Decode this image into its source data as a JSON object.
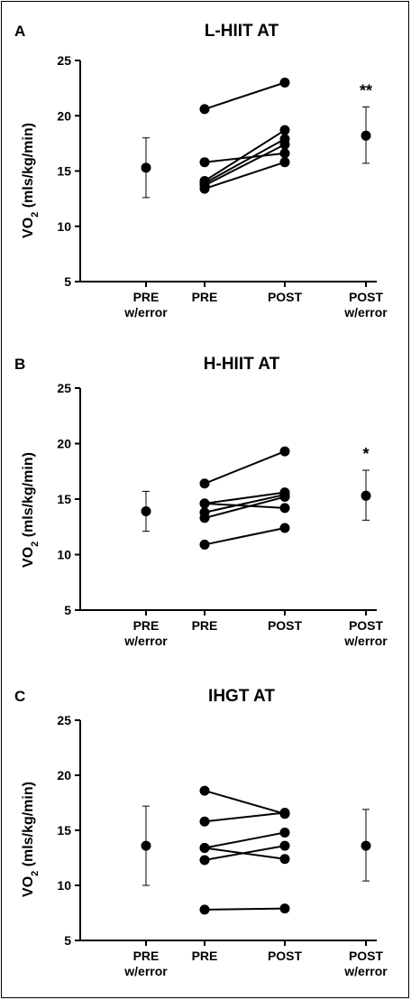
{
  "ylabel_main": "VO",
  "ylabel_sub": "2",
  "ylabel_units": " (mls/kg/min)",
  "chart_data": [
    {
      "panel": "A",
      "title": "L-HIIT AT",
      "type": "line",
      "categories": [
        "PRE\nw/error",
        "PRE",
        "POST",
        "POST\nw/error"
      ],
      "ylim": [
        5,
        25
      ],
      "yticks": [
        5,
        10,
        15,
        20,
        25
      ],
      "subjects": [
        [
          20.6,
          23.0
        ],
        [
          15.8,
          16.6
        ],
        [
          14.1,
          18.7
        ],
        [
          13.9,
          17.9
        ],
        [
          13.7,
          17.4
        ],
        [
          13.4,
          15.8
        ]
      ],
      "pre_error": {
        "mean": 15.3,
        "low": 12.6,
        "high": 18.0
      },
      "post_error": {
        "mean": 18.2,
        "low": 15.7,
        "high": 20.8
      },
      "significance": "**"
    },
    {
      "panel": "B",
      "title": "H-HIIT AT",
      "type": "line",
      "categories": [
        "PRE\nw/error",
        "PRE",
        "POST",
        "POST\nw/error"
      ],
      "ylim": [
        5,
        25
      ],
      "yticks": [
        5,
        10,
        15,
        20,
        25
      ],
      "subjects": [
        [
          16.4,
          19.3
        ],
        [
          14.6,
          15.6
        ],
        [
          14.6,
          14.2
        ],
        [
          13.8,
          15.4
        ],
        [
          13.3,
          15.2
        ],
        [
          10.9,
          12.4
        ]
      ],
      "pre_error": {
        "mean": 13.9,
        "low": 12.1,
        "high": 15.7
      },
      "post_error": {
        "mean": 15.3,
        "low": 13.1,
        "high": 17.6
      },
      "significance": "*"
    },
    {
      "panel": "C",
      "title": "IHGT AT",
      "type": "line",
      "categories": [
        "PRE\nw/error",
        "PRE",
        "POST",
        "POST\nw/error"
      ],
      "ylim": [
        5,
        25
      ],
      "yticks": [
        5,
        10,
        15,
        20,
        25
      ],
      "subjects": [
        [
          18.6,
          16.5
        ],
        [
          15.8,
          16.6
        ],
        [
          13.4,
          14.8
        ],
        [
          13.4,
          12.4
        ],
        [
          12.3,
          13.6
        ],
        [
          7.8,
          7.9
        ]
      ],
      "pre_error": {
        "mean": 13.6,
        "low": 10.0,
        "high": 17.2
      },
      "post_error": {
        "mean": 13.6,
        "low": 10.4,
        "high": 16.9
      },
      "significance": ""
    }
  ]
}
